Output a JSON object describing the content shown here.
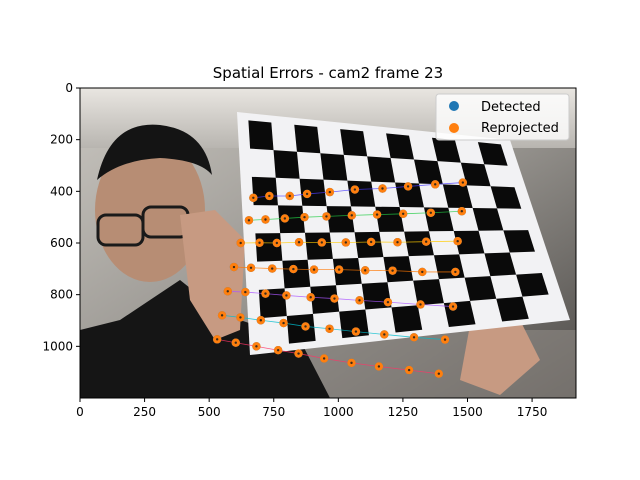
{
  "chart_data": {
    "type": "scatter",
    "title": "Spatial Errors - cam2 frame 23",
    "xlabel": "",
    "ylabel": "",
    "xlim": [
      0,
      1920
    ],
    "ylim": [
      1200,
      0
    ],
    "x_ticks": [
      0,
      250,
      500,
      750,
      1000,
      1250,
      1500,
      1750
    ],
    "y_ticks": [
      0,
      200,
      400,
      600,
      800,
      1000
    ],
    "legend_position": "top-right",
    "colors": {
      "detected": "#1f77b4",
      "reprojected": "#ff7f0e"
    },
    "series": [
      {
        "name": "Detected",
        "color": "#1f77b4",
        "points": [
          [
            671,
            425
          ],
          [
            733,
            418
          ],
          [
            812,
            418
          ],
          [
            879,
            410
          ],
          [
            967,
            403
          ],
          [
            1064,
            393
          ],
          [
            1171,
            389
          ],
          [
            1270,
            381
          ],
          [
            1375,
            373
          ],
          [
            1482,
            366
          ],
          [
            654,
            512
          ],
          [
            718,
            509
          ],
          [
            793,
            505
          ],
          [
            869,
            500
          ],
          [
            954,
            497
          ],
          [
            1052,
            493
          ],
          [
            1150,
            490
          ],
          [
            1251,
            487
          ],
          [
            1358,
            483
          ],
          [
            1478,
            477
          ],
          [
            622,
            600
          ],
          [
            695,
            599
          ],
          [
            762,
            600
          ],
          [
            848,
            597
          ],
          [
            936,
            598
          ],
          [
            1029,
            598
          ],
          [
            1127,
            596
          ],
          [
            1229,
            597
          ],
          [
            1340,
            595
          ],
          [
            1462,
            593
          ],
          [
            596,
            693
          ],
          [
            662,
            696
          ],
          [
            744,
            699
          ],
          [
            826,
            701
          ],
          [
            906,
            703
          ],
          [
            1003,
            703
          ],
          [
            1104,
            706
          ],
          [
            1210,
            707
          ],
          [
            1325,
            712
          ],
          [
            1453,
            712
          ],
          [
            572,
            787
          ],
          [
            640,
            790
          ],
          [
            718,
            796
          ],
          [
            799,
            803
          ],
          [
            893,
            810
          ],
          [
            985,
            815
          ],
          [
            1082,
            822
          ],
          [
            1192,
            829
          ],
          [
            1318,
            838
          ],
          [
            1444,
            846
          ],
          [
            550,
            880
          ],
          [
            621,
            888
          ],
          [
            700,
            899
          ],
          [
            788,
            910
          ],
          [
            873,
            923
          ],
          [
            966,
            932
          ],
          [
            1068,
            943
          ],
          [
            1178,
            954
          ],
          [
            1293,
            965
          ],
          [
            1413,
            974
          ],
          [
            531,
            973
          ],
          [
            603,
            986
          ],
          [
            683,
            1000
          ],
          [
            767,
            1015
          ],
          [
            846,
            1028
          ],
          [
            945,
            1047
          ],
          [
            1051,
            1064
          ],
          [
            1157,
            1078
          ],
          [
            1274,
            1092
          ],
          [
            1389,
            1106
          ]
        ]
      },
      {
        "name": "Reprojected",
        "color": "#ff7f0e",
        "points": [
          [
            671,
            425
          ],
          [
            733,
            418
          ],
          [
            812,
            418
          ],
          [
            879,
            410
          ],
          [
            967,
            403
          ],
          [
            1064,
            393
          ],
          [
            1171,
            389
          ],
          [
            1270,
            381
          ],
          [
            1375,
            373
          ],
          [
            1482,
            366
          ],
          [
            654,
            512
          ],
          [
            718,
            509
          ],
          [
            793,
            505
          ],
          [
            869,
            500
          ],
          [
            954,
            497
          ],
          [
            1052,
            493
          ],
          [
            1150,
            490
          ],
          [
            1251,
            487
          ],
          [
            1358,
            483
          ],
          [
            1478,
            477
          ],
          [
            622,
            600
          ],
          [
            695,
            599
          ],
          [
            762,
            600
          ],
          [
            848,
            597
          ],
          [
            936,
            598
          ],
          [
            1029,
            598
          ],
          [
            1127,
            596
          ],
          [
            1229,
            597
          ],
          [
            1340,
            595
          ],
          [
            1462,
            593
          ],
          [
            596,
            693
          ],
          [
            662,
            696
          ],
          [
            744,
            699
          ],
          [
            826,
            701
          ],
          [
            906,
            703
          ],
          [
            1003,
            703
          ],
          [
            1104,
            706
          ],
          [
            1210,
            707
          ],
          [
            1325,
            712
          ],
          [
            1453,
            712
          ],
          [
            572,
            787
          ],
          [
            640,
            790
          ],
          [
            718,
            796
          ],
          [
            799,
            803
          ],
          [
            893,
            810
          ],
          [
            985,
            815
          ],
          [
            1082,
            822
          ],
          [
            1192,
            829
          ],
          [
            1318,
            838
          ],
          [
            1444,
            846
          ],
          [
            550,
            880
          ],
          [
            621,
            888
          ],
          [
            700,
            899
          ],
          [
            788,
            910
          ],
          [
            873,
            923
          ],
          [
            966,
            932
          ],
          [
            1068,
            943
          ],
          [
            1178,
            954
          ],
          [
            1293,
            965
          ],
          [
            1413,
            974
          ],
          [
            531,
            973
          ],
          [
            603,
            986
          ],
          [
            683,
            1000
          ],
          [
            767,
            1015
          ],
          [
            846,
            1028
          ],
          [
            945,
            1047
          ],
          [
            1051,
            1064
          ],
          [
            1157,
            1078
          ],
          [
            1274,
            1092
          ],
          [
            1389,
            1106
          ]
        ]
      }
    ],
    "image_annotations": {
      "board_color": "#f2f2f4",
      "square_color": "#0a0a0a",
      "rows": 7,
      "cols": 10
    }
  }
}
